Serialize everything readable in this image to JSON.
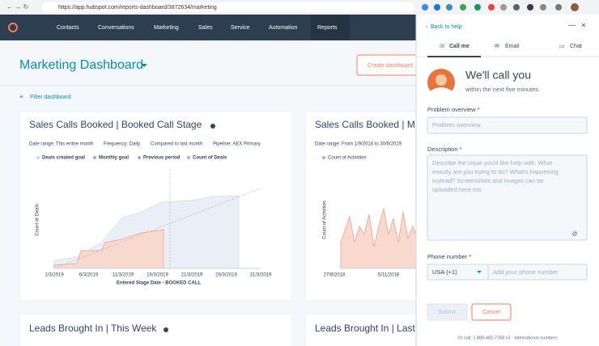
{
  "browser": {
    "url": "https://app.hubspot.com/reports-dashboard/3872634/marketing"
  },
  "nav": {
    "items": [
      "Contacts",
      "Conversations",
      "Marketing",
      "Sales",
      "Service",
      "Automation",
      "Reports"
    ]
  },
  "dashboard": {
    "title": "Marketing Dashboard",
    "create_button": "Create dashboard",
    "filter": "Filter dashboard",
    "cards": [
      {
        "title": "Sales Calls Booked | Booked Call Stage",
        "filters": [
          "Date range: This entire month",
          "Frequency: Daily",
          "Compared to last month",
          "Pipeline: AEX Primary"
        ],
        "legend": [
          "Deals created goal",
          "Monthly goal",
          "Previous period",
          "Count of Deals"
        ],
        "y_label": "Count of Deals",
        "x_ticks": [
          "1/3/2019",
          "6/3/2019",
          "11/3/2019",
          "16/3/2019",
          "21/3/2019",
          "26/3/2019",
          "31/3/2019"
        ],
        "x_label": "Entered Stage Date - BOOKED CALL"
      },
      {
        "title": "Sales Calls Booked | M",
        "filters": [
          "Date range: From 1/9/2018 to 30/6/2019"
        ],
        "legend": [
          "Count of Activities"
        ],
        "y_label": "Count of Activities",
        "x_ticks": [
          "27/8/2018",
          "5/11/2018"
        ]
      },
      {
        "title": "Leads Brought In | This Week"
      },
      {
        "title": "Leads Brought In | Last"
      }
    ]
  },
  "help": {
    "back": "Back to help",
    "tabs": [
      "Call me",
      "Email",
      "Chat"
    ],
    "heading": "We'll call you",
    "subheading": "within the next five minutes.",
    "problem_label": "Problem overview *",
    "problem_placeholder": "Problem overview",
    "description_label": "Description *",
    "description_placeholder": [
      "Describe the issue you'd like help with. What",
      "exactly are you trying to do? What's happening",
      "instead? Screenshots and images can be",
      "uploaded here too."
    ],
    "phone_label": "Phone number *",
    "country": "USA (+1)",
    "phone_placeholder": "Add your phone number",
    "submit": "Submit",
    "cancel": "Cancel",
    "footer": "Or call: 1 888-482-7768 x3 · International numbers"
  }
}
